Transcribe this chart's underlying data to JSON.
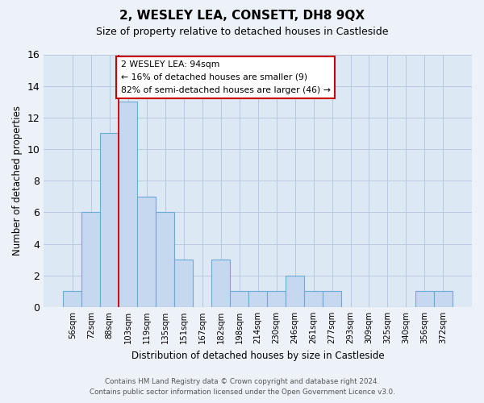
{
  "title": "2, WESLEY LEA, CONSETT, DH8 9QX",
  "subtitle": "Size of property relative to detached houses in Castleside",
  "xlabel": "Distribution of detached houses by size in Castleside",
  "ylabel": "Number of detached properties",
  "footer_line1": "Contains HM Land Registry data © Crown copyright and database right 2024.",
  "footer_line2": "Contains public sector information licensed under the Open Government Licence v3.0.",
  "bin_labels": [
    "56sqm",
    "72sqm",
    "88sqm",
    "103sqm",
    "119sqm",
    "135sqm",
    "151sqm",
    "167sqm",
    "182sqm",
    "198sqm",
    "214sqm",
    "230sqm",
    "246sqm",
    "261sqm",
    "277sqm",
    "293sqm",
    "309sqm",
    "325sqm",
    "340sqm",
    "356sqm",
    "372sqm"
  ],
  "bar_values": [
    1,
    6,
    11,
    13,
    7,
    6,
    3,
    0,
    3,
    1,
    1,
    1,
    2,
    1,
    1,
    0,
    0,
    0,
    0,
    1,
    1
  ],
  "bar_color": "#c5d8ef",
  "bar_edge_color": "#6aaad4",
  "annotation_box_text": "2 WESLEY LEA: 94sqm\n← 16% of detached houses are smaller (9)\n82% of semi-detached houses are larger (46) →",
  "annotation_box_edge_color": "#cc0000",
  "property_line_x": 2.5,
  "ylim": [
    0,
    16
  ],
  "yticks": [
    0,
    2,
    4,
    6,
    8,
    10,
    12,
    14,
    16
  ],
  "background_color": "#edf2f9",
  "plot_background_color": "#dde8f5",
  "grid_color": "#b8c8dd"
}
